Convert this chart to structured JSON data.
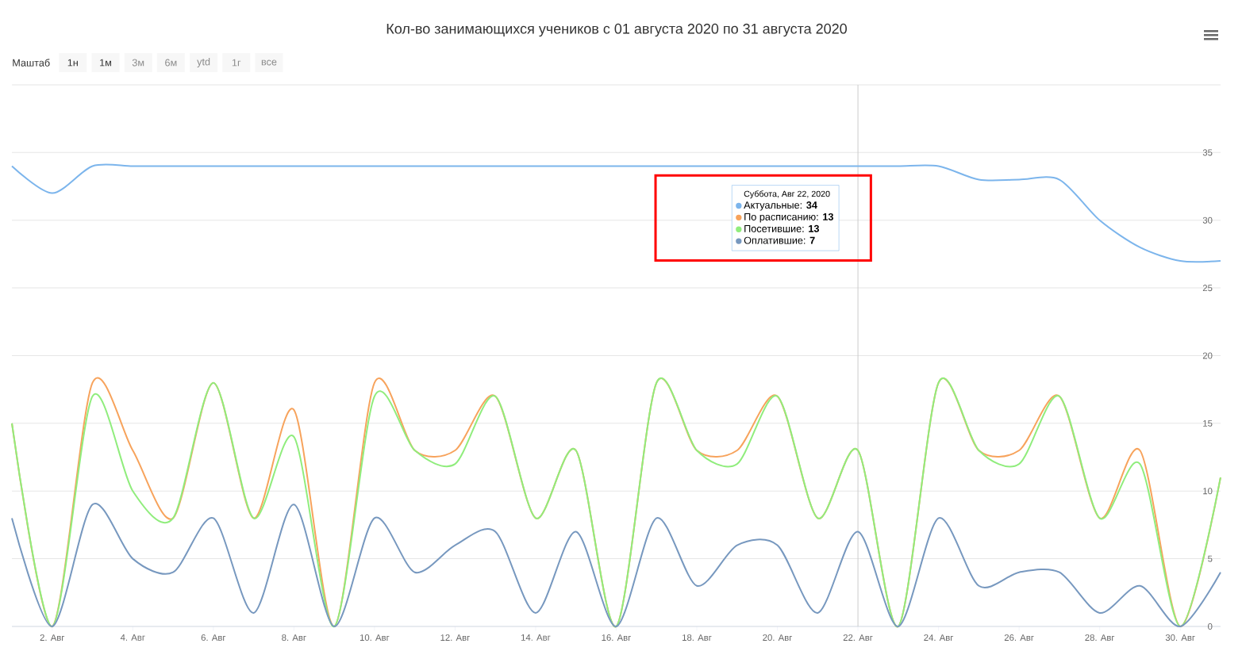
{
  "chart_data": {
    "type": "line",
    "title": "Кол-во занимающихся учеников с 01 августа 2020 по 31 августа 2020",
    "x": [
      "2020-08-01",
      "2020-08-02",
      "2020-08-03",
      "2020-08-04",
      "2020-08-05",
      "2020-08-06",
      "2020-08-07",
      "2020-08-08",
      "2020-08-09",
      "2020-08-10",
      "2020-08-11",
      "2020-08-12",
      "2020-08-13",
      "2020-08-14",
      "2020-08-15",
      "2020-08-16",
      "2020-08-17",
      "2020-08-18",
      "2020-08-19",
      "2020-08-20",
      "2020-08-21",
      "2020-08-22",
      "2020-08-23",
      "2020-08-24",
      "2020-08-25",
      "2020-08-26",
      "2020-08-27",
      "2020-08-28",
      "2020-08-29",
      "2020-08-30",
      "2020-08-31"
    ],
    "series": [
      {
        "name": "Актуальные",
        "color": "#7cb5ec",
        "values": [
          34,
          32,
          34,
          34,
          34,
          34,
          34,
          34,
          34,
          34,
          34,
          34,
          34,
          34,
          34,
          34,
          34,
          34,
          34,
          34,
          34,
          34,
          34,
          34,
          33,
          33,
          33,
          30,
          28,
          27,
          27
        ]
      },
      {
        "name": "По расписанию",
        "color": "#f7a35c",
        "values": [
          15,
          0,
          18,
          13,
          8,
          18,
          8,
          16,
          0,
          18,
          13,
          13,
          17,
          8,
          13,
          0,
          18,
          13,
          13,
          17,
          8,
          13,
          0,
          18,
          13,
          13,
          17,
          8,
          13,
          0,
          11
        ]
      },
      {
        "name": "Посетившие",
        "color": "#90ed7d",
        "values": [
          15,
          0,
          17,
          10,
          8,
          18,
          8,
          14,
          0,
          17,
          13,
          12,
          17,
          8,
          13,
          0,
          18,
          13,
          12,
          17,
          8,
          13,
          0,
          18,
          13,
          12,
          17,
          8,
          12,
          0,
          11
        ]
      },
      {
        "name": "Оплатившие",
        "color": "#7798bf",
        "values": [
          8,
          0,
          9,
          5,
          4,
          8,
          1,
          9,
          0,
          8,
          4,
          6,
          7,
          1,
          7,
          0,
          8,
          3,
          6,
          6,
          1,
          7,
          0,
          8,
          3,
          4,
          4,
          1,
          3,
          0,
          4
        ]
      }
    ],
    "xlim": [
      "2020-08-01",
      "2020-08-31"
    ],
    "xticks": [
      {
        "value": "2020-08-02",
        "label": "2. Авг"
      },
      {
        "value": "2020-08-04",
        "label": "4. Авг"
      },
      {
        "value": "2020-08-06",
        "label": "6. Авг"
      },
      {
        "value": "2020-08-08",
        "label": "8. Авг"
      },
      {
        "value": "2020-08-10",
        "label": "10. Авг"
      },
      {
        "value": "2020-08-12",
        "label": "12. Авг"
      },
      {
        "value": "2020-08-14",
        "label": "14. Авг"
      },
      {
        "value": "2020-08-16",
        "label": "16. Авг"
      },
      {
        "value": "2020-08-18",
        "label": "18. Авг"
      },
      {
        "value": "2020-08-20",
        "label": "20. Авг"
      },
      {
        "value": "2020-08-22",
        "label": "22. Авг"
      },
      {
        "value": "2020-08-24",
        "label": "24. Авг"
      },
      {
        "value": "2020-08-26",
        "label": "26. Авг"
      },
      {
        "value": "2020-08-28",
        "label": "28. Авг"
      },
      {
        "value": "2020-08-30",
        "label": "30. Авг"
      }
    ],
    "ylim": [
      0,
      40
    ],
    "yticks": [
      0,
      5,
      10,
      15,
      20,
      25,
      30,
      35,
      {
        "value": 40,
        "label": null
      }
    ],
    "grid": "y",
    "legend": "top",
    "legend_title": "Суббота, Авг 22, 2020",
    "marker": "none",
    "line_style": "solid",
    "ref_lines": [
      {
        "axis": "x",
        "value": "2020-08-22",
        "color": "#cccccc"
      }
    ],
    "annotations": [
      "Маштаб",
      "1н",
      "1м",
      "3м",
      "6м",
      "ytd",
      "1г",
      "все",
      ": **34**",
      ": **13**",
      ": **13**",
      ": **7**"
    ]
  }
}
